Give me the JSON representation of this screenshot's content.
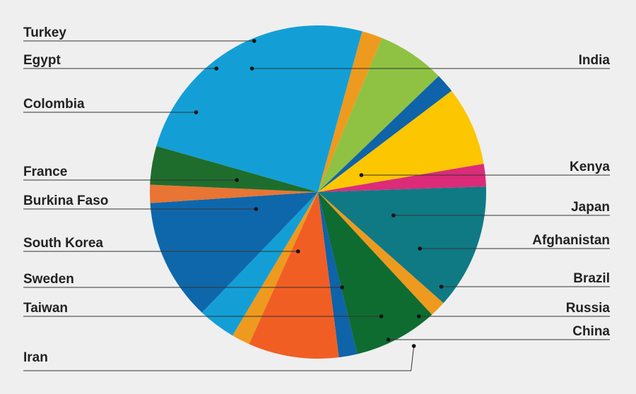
{
  "chart_data": {
    "type": "pie",
    "title": "",
    "slices": [
      {
        "label": "India",
        "value": 23.9,
        "color": "#139fd6"
      },
      {
        "label": "Kenya",
        "value": 1.9,
        "color": "#ee9a1e"
      },
      {
        "label": "Japan",
        "value": 6.3,
        "color": "#8fc242"
      },
      {
        "label": "Afghanistan",
        "value": 1.8,
        "color": "#0f63a8"
      },
      {
        "label": "Brazil",
        "value": 7.4,
        "color": "#fcc600"
      },
      {
        "label": "Russia",
        "value": 2.1,
        "color": "#db2b79"
      },
      {
        "label": "China",
        "value": 11.7,
        "color": "#0f7a84"
      },
      {
        "label": "Iran",
        "value": 1.5,
        "color": "#ee9a1e"
      },
      {
        "label": "Taiwan",
        "value": 7.8,
        "color": "#0e6c31"
      },
      {
        "label": "Sweden",
        "value": 1.7,
        "color": "#0f63a8"
      },
      {
        "label": "South Korea",
        "value": 8.4,
        "color": "#f15e24"
      },
      {
        "label": "Burkina Faso",
        "value": 1.7,
        "color": "#ee9a1e"
      },
      {
        "label": "France",
        "value": 3.5,
        "color": "#139fd6"
      },
      {
        "label": "Colombia",
        "value": 11.4,
        "color": "#0f67ab"
      },
      {
        "label": "Egypt",
        "value": 1.7,
        "color": "#e87534"
      },
      {
        "label": "Turkey",
        "value": 3.6,
        "color": "#1f6d2d"
      }
    ]
  }
}
